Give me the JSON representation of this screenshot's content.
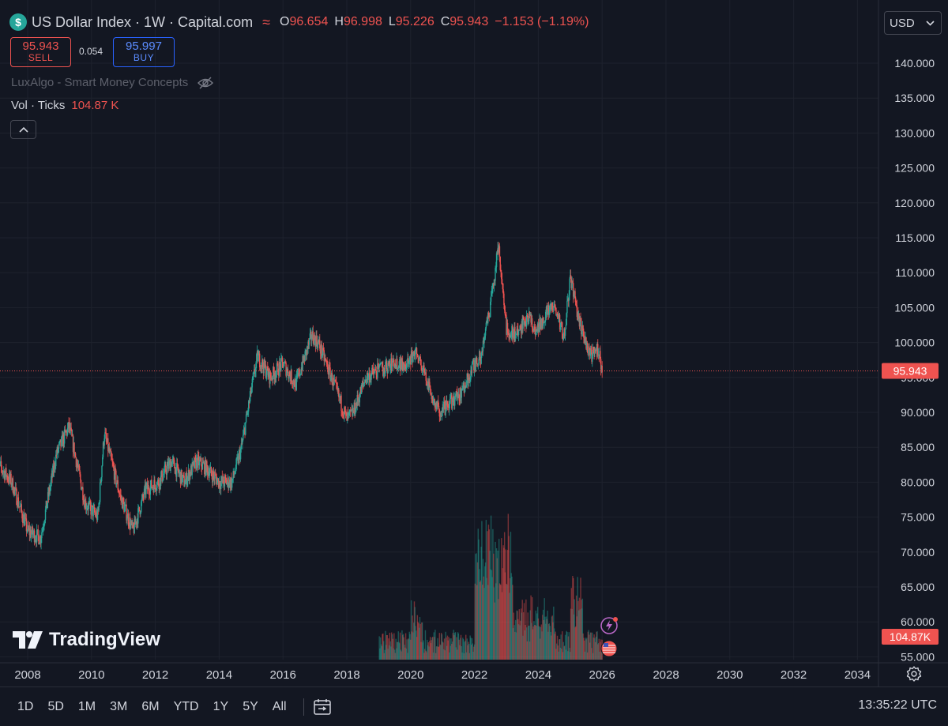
{
  "header": {
    "symbol_title": "US Dollar Index · 1W · Capital.com",
    "logo_glyph": "$",
    "ohlc": [
      {
        "k": "O",
        "v": "96.654"
      },
      {
        "k": "H",
        "v": "96.998"
      },
      {
        "k": "L",
        "v": "95.226"
      },
      {
        "k": "C",
        "v": "95.943"
      }
    ],
    "change": "−1.153 (−1.19%)"
  },
  "trade": {
    "sell_price": "95.943",
    "sell_label": "SELL",
    "spread": "0.054",
    "buy_price": "95.997",
    "buy_label": "BUY"
  },
  "indicators": {
    "lux_label": "LuxAlgo - Smart Money Concepts",
    "vol_label": "Vol · Ticks",
    "vol_value": "104.87 K"
  },
  "currency": "USD",
  "branding": {
    "name": "TradingView"
  },
  "price_axis": {
    "labels": [
      "140.000",
      "135.000",
      "130.000",
      "125.000",
      "120.000",
      "115.000",
      "110.000",
      "105.000",
      "100.000",
      "95.000",
      "90.000",
      "85.000",
      "80.000",
      "75.000",
      "70.000",
      "65.000",
      "60.000",
      "55.000"
    ],
    "current_price_tag": "95.943",
    "volume_tag": "104.87K"
  },
  "time_axis": {
    "labels": [
      "2008",
      "2010",
      "2012",
      "2014",
      "2016",
      "2018",
      "2020",
      "2022",
      "2024",
      "2026",
      "2028",
      "2030",
      "2032",
      "2034"
    ]
  },
  "bottom_bar": {
    "ranges": [
      "1D",
      "5D",
      "1M",
      "3M",
      "6M",
      "YTD",
      "1Y",
      "5Y",
      "All"
    ],
    "clock": "13:35:22 UTC"
  },
  "colors": {
    "up": "#26a69a",
    "down": "#ef5350",
    "background": "#131722",
    "grid": "#1e222d"
  },
  "chart_data": {
    "type": "candlestick",
    "timeframe": "1W",
    "x": [
      2007.0,
      2007.5,
      2008.0,
      2008.4,
      2008.9,
      2009.3,
      2009.8,
      2010.2,
      2010.4,
      2010.9,
      2011.3,
      2011.7,
      2012.1,
      2012.5,
      2012.9,
      2013.3,
      2013.6,
      2014.0,
      2014.4,
      2014.7,
      2015.0,
      2015.2,
      2015.6,
      2016.0,
      2016.4,
      2016.9,
      2017.1,
      2017.6,
      2018.0,
      2018.2,
      2018.6,
      2019.0,
      2019.5,
      2019.9,
      2020.2,
      2020.6,
      2020.9,
      2021.2,
      2021.6,
      2021.9,
      2022.2,
      2022.5,
      2022.75,
      2023.0,
      2023.3,
      2023.7,
      2023.9,
      2024.2,
      2024.5,
      2024.8,
      2025.0,
      2025.3,
      2025.6,
      2025.9,
      2026.0
    ],
    "close": [
      83,
      80,
      73,
      72,
      84,
      88,
      77,
      75,
      87,
      78,
      73,
      79,
      80,
      83,
      80,
      83,
      82,
      80,
      80,
      85,
      93,
      98,
      95,
      97,
      94,
      101,
      100,
      94,
      89,
      90,
      95,
      96,
      97,
      97,
      99,
      93,
      90,
      91,
      93,
      96,
      98,
      105,
      114,
      102,
      101,
      104,
      101,
      104,
      105,
      101,
      109,
      103,
      98,
      99,
      96
    ]
  },
  "volume_data": {
    "note": "Vol · Ticks",
    "last": 104.87
  }
}
